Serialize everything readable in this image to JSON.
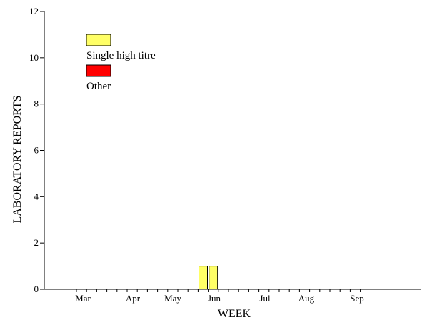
{
  "chart_data": {
    "type": "bar",
    "xlabel": "WEEK",
    "ylabel": "LABORATORY REPORTS",
    "ylim": [
      0,
      12
    ],
    "yticks": [
      0,
      2,
      4,
      6,
      8,
      10,
      12
    ],
    "grid": false,
    "legend_position": "top-left",
    "x_month_labels": [
      "Mar",
      "Apr",
      "May",
      "Jun",
      "Jul",
      "Aug",
      "Sep"
    ],
    "week_count": 29,
    "series": [
      {
        "name": "Single high titre",
        "color": "#ffff66",
        "values": [
          0,
          0,
          0,
          0,
          0,
          0,
          0,
          0,
          0,
          0,
          0,
          0,
          1,
          1,
          0,
          0,
          0,
          0,
          0,
          0,
          0,
          0,
          0,
          0,
          0,
          0,
          0,
          0,
          0
        ]
      },
      {
        "name": "Other",
        "color": "#ff0000",
        "values": [
          0,
          0,
          0,
          0,
          0,
          0,
          0,
          0,
          0,
          0,
          0,
          0,
          0,
          0,
          0,
          0,
          0,
          0,
          0,
          0,
          0,
          0,
          0,
          0,
          0,
          0,
          0,
          0,
          0
        ]
      }
    ]
  }
}
